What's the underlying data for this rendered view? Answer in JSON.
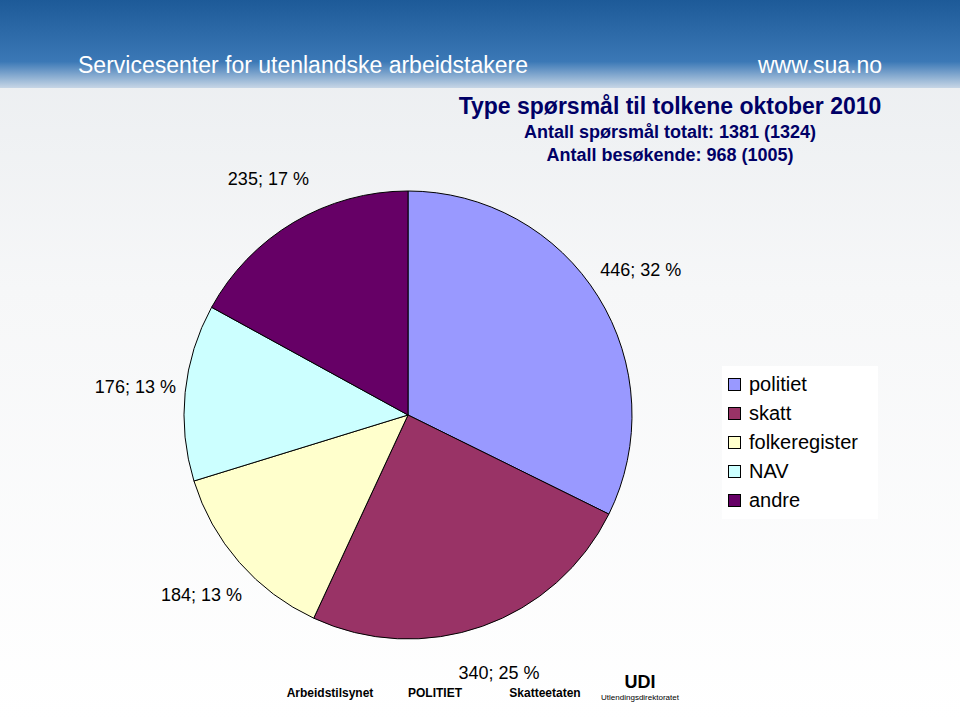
{
  "chart_data": {
    "type": "pie",
    "title": "Type spørsmål til tolkene oktober 2010",
    "subtitle": [
      "Antall spørsmål totalt: 1381 (1324)",
      "Antall besøkende: 968 (1005)"
    ],
    "categories": [
      "politiet",
      "skatt",
      "folkeregister",
      "NAV",
      "andre"
    ],
    "values": [
      446,
      340,
      184,
      176,
      235
    ],
    "value_labels": [
      "446; 32 %",
      "340; 25 %",
      "184; 13 %",
      "176; 13 %",
      "235; 17 %"
    ],
    "colors": [
      "#9999ff",
      "#993366",
      "#ffffcc",
      "#ccffff",
      "#660066"
    ],
    "data_labels": true,
    "legend": "right"
  },
  "header": {
    "left": "Servicesenter for utenlandske arbeidstakere",
    "right": "www.sua.no"
  },
  "footer_logos": [
    {
      "text": "Arbeidstilsynet"
    },
    {
      "text": "POLITIET"
    },
    {
      "text": "Skatteetaten"
    },
    {
      "text": "UDI",
      "sub": "Utlendingsdirektoratet"
    }
  ]
}
